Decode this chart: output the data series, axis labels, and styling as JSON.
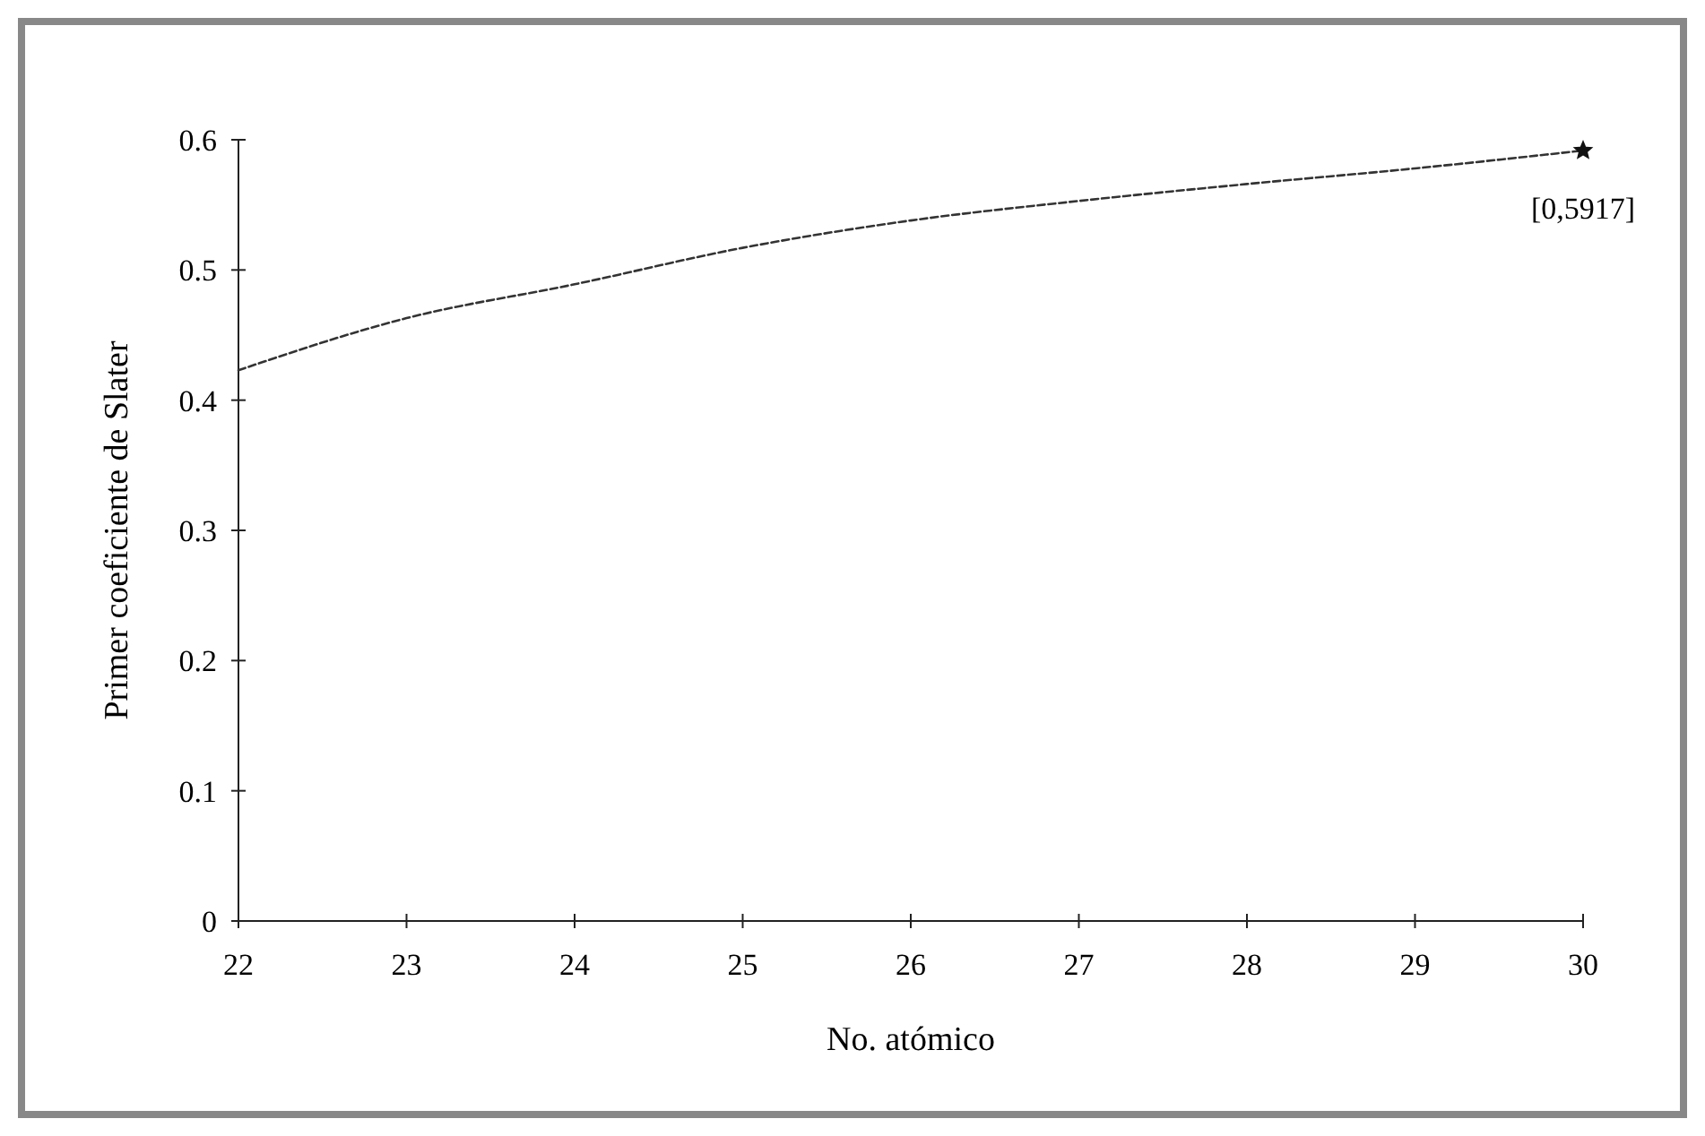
{
  "chart_data": {
    "type": "line",
    "xlabel": "No. atómico",
    "ylabel": "Primer coeficiente de Slater",
    "x": [
      22,
      23,
      24,
      25,
      26,
      27,
      28,
      29,
      30
    ],
    "series": [
      {
        "color": "#333333",
        "line_style": "dashed",
        "marker": "none",
        "values": [
          0.423,
          0.463,
          0.489,
          0.517,
          0.538,
          0.553,
          0.566,
          0.578,
          0.5917
        ]
      },
      {
        "type": "scatter",
        "color": "#111111",
        "marker": "star",
        "x": [
          30
        ],
        "values": [
          0.5917
        ]
      }
    ],
    "annotations": [
      {
        "text": "[0,5917]",
        "x": 30,
        "y": 0.5917
      }
    ],
    "xlim": [
      22,
      30
    ],
    "xticks": [
      22,
      23,
      24,
      25,
      26,
      27,
      28,
      29,
      30
    ],
    "ylim": [
      0,
      0.6
    ],
    "yticks": [
      0,
      0.1,
      0.2,
      0.3,
      0.4,
      0.5,
      0.6
    ],
    "grid": false
  }
}
